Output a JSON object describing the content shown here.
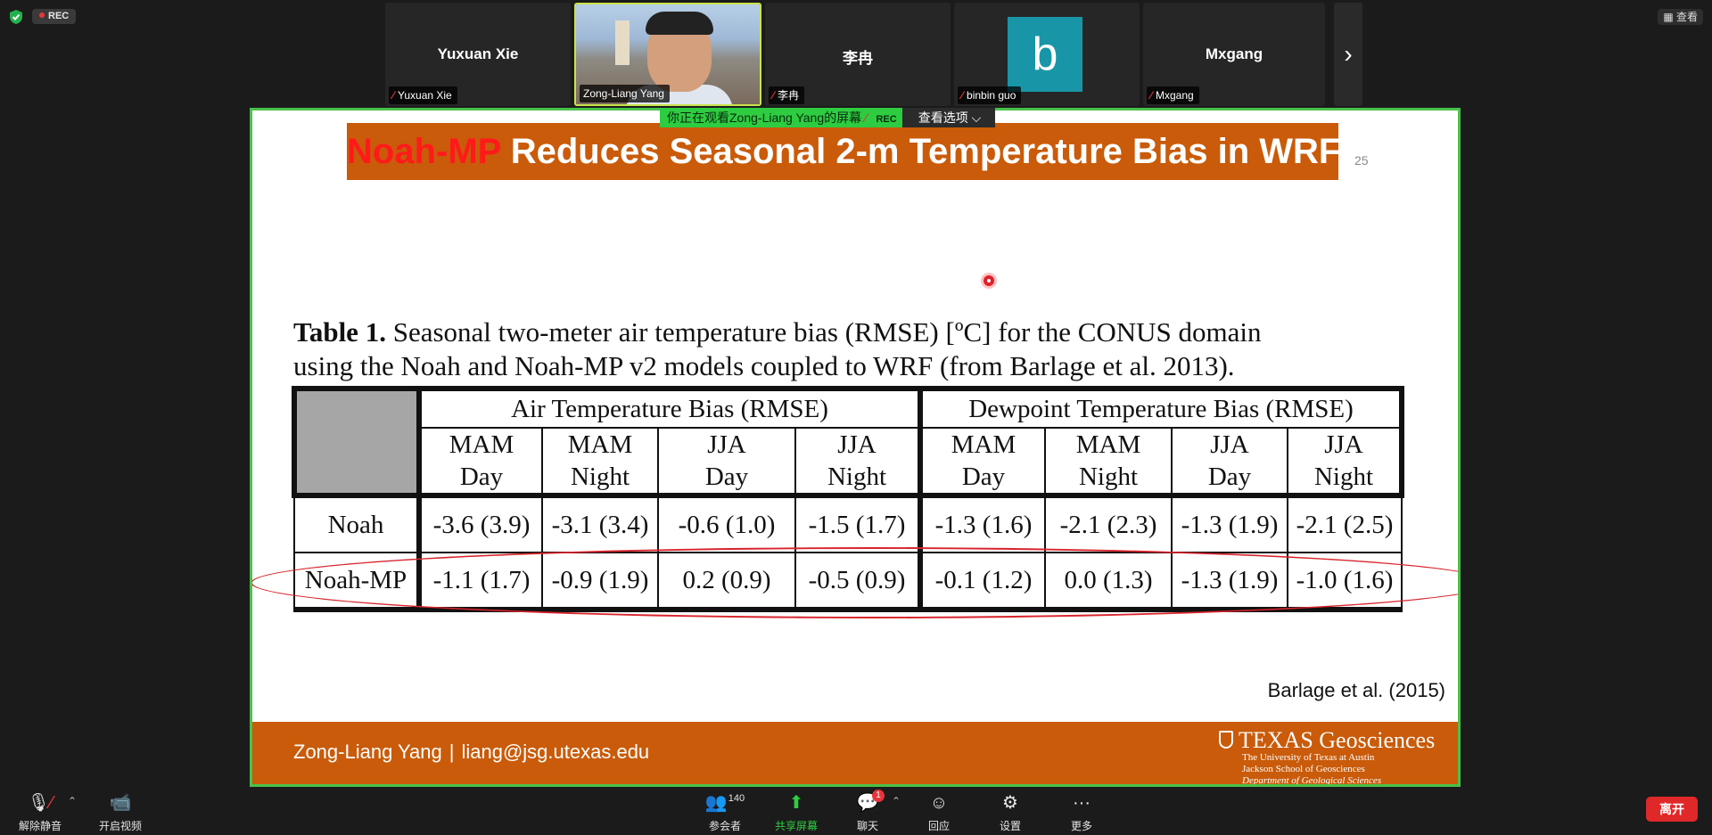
{
  "top": {
    "rec_label": "REC",
    "view_label": "查看"
  },
  "participants": [
    {
      "name": "Yuxuan Xie",
      "label": "Yuxuan Xie"
    },
    {
      "name": "",
      "label": "Zong-Liang Yang"
    },
    {
      "name": "李冉",
      "label": "李冉"
    },
    {
      "name": "b",
      "label": "binbin guo"
    },
    {
      "name": "Mxgang",
      "label": "Mxgang"
    }
  ],
  "share_banner": {
    "text": "你正在观看Zong-Liang Yang的屏幕",
    "rec": "REC",
    "options": "查看选项 ⌵"
  },
  "slide": {
    "title_red": "Noah-MP",
    "title_rest": " Reduces Seasonal 2-m Temperature Bias in WRF",
    "page_number": "25",
    "caption_bold": "Table 1.",
    "caption_line1": " Seasonal two-meter air temperature bias (RMSE) [ºC] for the CONUS domain",
    "caption_line2": "using the Noah and Noah-MP v2 models coupled to WRF (from Barlage et al. 2013).",
    "table": {
      "group_air": "Air Temperature Bias (RMSE)",
      "group_dew": "Dewpoint Temperature Bias (RMSE)",
      "cols": [
        [
          "MAM",
          "Day"
        ],
        [
          "MAM",
          "Night"
        ],
        [
          "JJA",
          "Day"
        ],
        [
          "JJA",
          "Night"
        ],
        [
          "MAM",
          "Day"
        ],
        [
          "MAM",
          "Night"
        ],
        [
          "JJA",
          "Day"
        ],
        [
          "JJA",
          "Night"
        ]
      ],
      "rows": [
        {
          "label": "Noah",
          "values": [
            "-3.6 (3.9)",
            "-3.1 (3.4)",
            "-0.6 (1.0)",
            "-1.5 (1.7)",
            "-1.3 (1.6)",
            "-2.1 (2.3)",
            "-1.3 (1.9)",
            "-2.1 (2.5)"
          ]
        },
        {
          "label": "Noah-MP",
          "values": [
            "-1.1 (1.7)",
            "-0.9 (1.9)",
            "0.2 (0.9)",
            "-0.5 (0.9)",
            "-0.1 (1.2)",
            "0.0 (1.3)",
            "-1.3 (1.9)",
            "-1.0 (1.6)"
          ]
        }
      ]
    },
    "reference": "Barlage et al. (2015)",
    "footer_name": "Zong-Liang Yang",
    "footer_sep": "|",
    "footer_email": "liang@jsg.utexas.edu",
    "logo_big": "TEXAS Geosciences",
    "logo_l1": "The University of Texas at Austin",
    "logo_l2": "Jackson School of Geosciences",
    "logo_l3": "Department of Geological Sciences"
  },
  "toolbar": {
    "unmute": "解除静音",
    "start_video": "开启视频",
    "participants": "参会者",
    "participants_count": "140",
    "share": "共享屏幕",
    "chat": "聊天",
    "chat_badge": "1",
    "reactions": "回应",
    "settings": "设置",
    "more": "更多",
    "leave": "离开"
  }
}
